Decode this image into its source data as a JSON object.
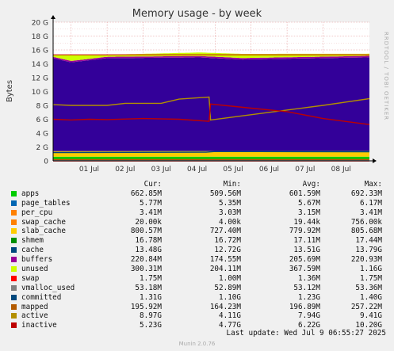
{
  "title": "Memory usage - by week",
  "side_label": "RRDTOOL / TOBI OETIKER",
  "footer": "Last update: Wed Jul  9 06:55:27 2025",
  "munin": "Munin 2.0.76",
  "chart_data": {
    "type": "area",
    "title": "Memory usage - by week",
    "ylabel": "Bytes",
    "ylim": [
      0,
      20
    ],
    "y_unit": "G",
    "y_ticks": [
      "0",
      "2 G",
      "4 G",
      "6 G",
      "8 G",
      "10 G",
      "12 G",
      "14 G",
      "16 G",
      "18 G",
      "20 G"
    ],
    "x_range": [
      "2025-06-30T12:00",
      "2025-07-09T06:55"
    ],
    "x_ticks": [
      {
        "label": "01 Jul",
        "date": "2025-07-01"
      },
      {
        "label": "02 Jul",
        "date": "2025-07-02"
      },
      {
        "label": "03 Jul",
        "date": "2025-07-03"
      },
      {
        "label": "04 Jul",
        "date": "2025-07-04"
      },
      {
        "label": "05 Jul",
        "date": "2025-07-05"
      },
      {
        "label": "06 Jul",
        "date": "2025-07-06"
      },
      {
        "label": "07 Jul",
        "date": "2025-07-07"
      },
      {
        "label": "08 Jul",
        "date": "2025-07-08"
      }
    ],
    "grid": true,
    "stack_top_gb": 15.3,
    "stack": [
      {
        "name": "apps",
        "color": "#00cc00",
        "points": [
          [
            "2025-06-30T12:00",
            0.6
          ],
          [
            "2025-07-09T06:55",
            0.6
          ]
        ]
      },
      {
        "name": "page_tables",
        "color": "#0066b3",
        "points": [
          [
            "2025-06-30T12:00",
            0.006
          ],
          [
            "2025-07-09T06:55",
            0.006
          ]
        ]
      },
      {
        "name": "per_cpu",
        "color": "#ff8000",
        "points": [
          [
            "2025-06-30T12:00",
            0.003
          ],
          [
            "2025-07-09T06:55",
            0.003
          ]
        ]
      },
      {
        "name": "swap_cache",
        "color": "#ffcc00",
        "points": [
          [
            "2025-06-30T12:00",
            0.0
          ],
          [
            "2025-07-09T06:55",
            0.0
          ]
        ]
      },
      {
        "name": "slab_cache",
        "color": "#ffcc00",
        "points": [
          [
            "2025-06-30T12:00",
            0.78
          ],
          [
            "2025-07-09T06:55",
            0.8
          ]
        ]
      },
      {
        "name": "shmem",
        "color": "#008f00",
        "points": [
          [
            "2025-06-30T12:00",
            0.017
          ],
          [
            "2025-07-09T06:55",
            0.017
          ]
        ]
      },
      {
        "name": "cache",
        "color": "#330099",
        "points": [
          [
            "2025-06-30T12:00",
            13.4
          ],
          [
            "2025-07-01T00:00",
            12.8
          ],
          [
            "2025-07-02T00:00",
            13.4
          ],
          [
            "2025-07-04T14:00",
            13.5
          ],
          [
            "2025-07-05T18:00",
            13.2
          ],
          [
            "2025-07-09T06:55",
            13.5
          ]
        ]
      },
      {
        "name": "buffers",
        "color": "#990099",
        "points": [
          [
            "2025-06-30T12:00",
            0.2
          ],
          [
            "2025-07-09T06:55",
            0.22
          ]
        ]
      },
      {
        "name": "unused",
        "color": "#ccff00",
        "points": [
          [
            "2025-06-30T12:00",
            0.3
          ],
          [
            "2025-07-01T00:00",
            0.9
          ],
          [
            "2025-07-02T00:00",
            0.3
          ],
          [
            "2025-07-05T18:00",
            0.6
          ],
          [
            "2025-07-09T06:55",
            0.3
          ]
        ]
      }
    ],
    "lines": [
      {
        "name": "swap",
        "color": "#ff0000",
        "points": [
          [
            "2025-06-30T12:00",
            0.002
          ],
          [
            "2025-07-09T06:55",
            0.002
          ]
        ]
      },
      {
        "name": "vmalloc_used",
        "color": "#808080",
        "points": [
          [
            "2025-06-30T12:00",
            0.053
          ],
          [
            "2025-07-09T06:55",
            0.053
          ]
        ]
      },
      {
        "name": "committed",
        "color": "#00487d",
        "points": [
          [
            "2025-06-30T12:00",
            1.2
          ],
          [
            "2025-07-04T18:00",
            1.25
          ],
          [
            "2025-07-05T00:00",
            1.35
          ],
          [
            "2025-07-09T06:55",
            1.3
          ]
        ]
      },
      {
        "name": "mapped",
        "color": "#b35a00",
        "points": [
          [
            "2025-06-30T12:00",
            0.19
          ],
          [
            "2025-07-09T06:55",
            0.196
          ]
        ]
      },
      {
        "name": "active",
        "color": "#b38f00",
        "points": [
          [
            "2025-06-30T12:00",
            8.1
          ],
          [
            "2025-07-01T00:00",
            8.0
          ],
          [
            "2025-07-02T00:00",
            8.0
          ],
          [
            "2025-07-02T12:00",
            8.3
          ],
          [
            "2025-07-03T12:00",
            8.3
          ],
          [
            "2025-07-04T00:00",
            8.9
          ],
          [
            "2025-07-04T20:00",
            9.2
          ],
          [
            "2025-07-04T21:00",
            5.9
          ],
          [
            "2025-07-06T12:00",
            7.0
          ],
          [
            "2025-07-08T00:00",
            8.0
          ],
          [
            "2025-07-09T06:55",
            8.97
          ]
        ]
      },
      {
        "name": "inactive",
        "color": "#bd0000",
        "points": [
          [
            "2025-06-30T12:00",
            6.0
          ],
          [
            "2025-07-01T00:00",
            5.9
          ],
          [
            "2025-07-01T12:00",
            6.0
          ],
          [
            "2025-07-02T00:00",
            5.95
          ],
          [
            "2025-07-03T00:00",
            6.1
          ],
          [
            "2025-07-04T00:00",
            6.0
          ],
          [
            "2025-07-04T20:00",
            5.7
          ],
          [
            "2025-07-04T21:00",
            8.2
          ],
          [
            "2025-07-06T00:00",
            7.6
          ],
          [
            "2025-07-07T00:00",
            7.1
          ],
          [
            "2025-07-08T00:00",
            6.1
          ],
          [
            "2025-07-09T06:55",
            5.23
          ]
        ]
      }
    ],
    "legend_header": [
      "",
      "Cur:",
      "Min:",
      "Avg:",
      "Max:"
    ],
    "legend": [
      {
        "name": "apps",
        "color": "#00cc00",
        "cur": "662.85M",
        "min": "509.56M",
        "avg": "601.59M",
        "max": "692.33M"
      },
      {
        "name": "page_tables",
        "color": "#0066b3",
        "cur": "5.77M",
        "min": "5.35M",
        "avg": "5.67M",
        "max": "6.17M"
      },
      {
        "name": "per_cpu",
        "color": "#ff8000",
        "cur": "3.41M",
        "min": "3.03M",
        "avg": "3.15M",
        "max": "3.41M"
      },
      {
        "name": "swap_cache",
        "color": "#ff8000",
        "cur": "20.00k",
        "min": "4.00k",
        "avg": "19.44k",
        "max": "756.00k"
      },
      {
        "name": "slab_cache",
        "color": "#ffcc00",
        "cur": "800.57M",
        "min": "727.40M",
        "avg": "779.92M",
        "max": "805.68M"
      },
      {
        "name": "shmem",
        "color": "#008f00",
        "cur": "16.78M",
        "min": "16.72M",
        "avg": "17.11M",
        "max": "17.44M"
      },
      {
        "name": "cache",
        "color": "#00487d",
        "cur": "13.48G",
        "min": "12.72G",
        "avg": "13.51G",
        "max": "13.79G"
      },
      {
        "name": "buffers",
        "color": "#990099",
        "cur": "220.84M",
        "min": "174.55M",
        "avg": "205.69M",
        "max": "220.93M"
      },
      {
        "name": "unused",
        "color": "#ccff00",
        "cur": "300.31M",
        "min": "204.11M",
        "avg": "367.59M",
        "max": "1.16G"
      },
      {
        "name": "swap",
        "color": "#ff0000",
        "cur": "1.75M",
        "min": "1.00M",
        "avg": "1.36M",
        "max": "1.75M"
      },
      {
        "name": "vmalloc_used",
        "color": "#808080",
        "cur": "53.18M",
        "min": "52.89M",
        "avg": "53.12M",
        "max": "53.36M"
      },
      {
        "name": "committed",
        "color": "#00487d",
        "cur": "1.31G",
        "min": "1.10G",
        "avg": "1.23G",
        "max": "1.40G"
      },
      {
        "name": "mapped",
        "color": "#b35a00",
        "cur": "195.92M",
        "min": "164.23M",
        "avg": "196.89M",
        "max": "257.22M"
      },
      {
        "name": "active",
        "color": "#b38f00",
        "cur": "8.97G",
        "min": "4.11G",
        "avg": "7.94G",
        "max": "9.41G"
      },
      {
        "name": "inactive",
        "color": "#bd0000",
        "cur": "5.23G",
        "min": "4.77G",
        "avg": "6.22G",
        "max": "10.20G"
      }
    ]
  }
}
